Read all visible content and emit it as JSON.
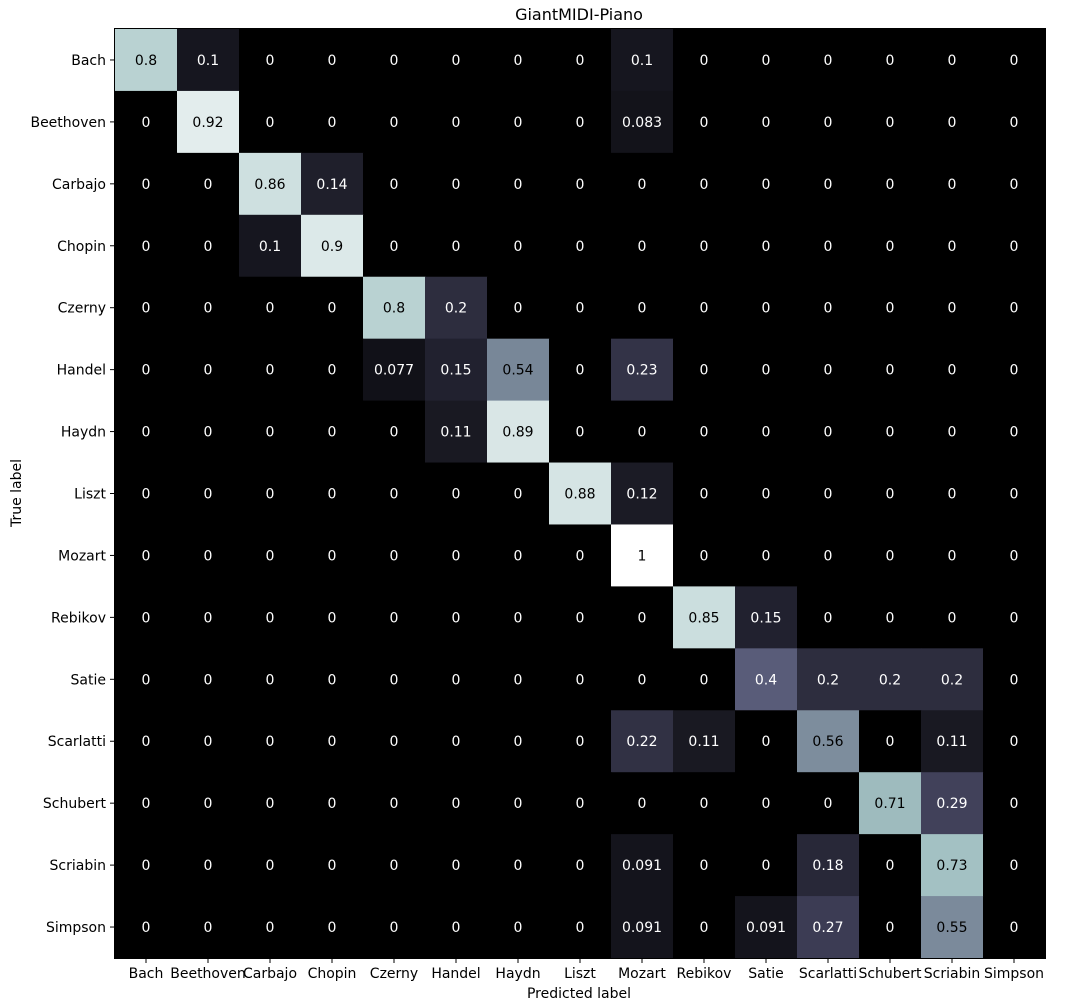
{
  "chart_data": {
    "type": "heatmap",
    "title": "GiantMIDI-Piano",
    "xlabel": "Predicted label",
    "ylabel": "True label",
    "x_categories": [
      "Bach",
      "Beethoven",
      "Carbajo",
      "Chopin",
      "Czerny",
      "Handel",
      "Haydn",
      "Liszt",
      "Mozart",
      "Rebikov",
      "Satie",
      "Scarlatti",
      "Schubert",
      "Scriabin",
      "Simpson"
    ],
    "y_categories": [
      "Bach",
      "Beethoven",
      "Carbajo",
      "Chopin",
      "Czerny",
      "Handel",
      "Haydn",
      "Liszt",
      "Mozart",
      "Rebikov",
      "Satie",
      "Scarlatti",
      "Schubert",
      "Scriabin",
      "Simpson"
    ],
    "value_range": [
      0,
      1
    ],
    "colormap": "bone",
    "cell_labels": [
      [
        "0.8",
        "0.1",
        "0",
        "0",
        "0",
        "0",
        "0",
        "0",
        "0.1",
        "0",
        "0",
        "0",
        "0",
        "0",
        "0"
      ],
      [
        "0",
        "0.92",
        "0",
        "0",
        "0",
        "0",
        "0",
        "0",
        "0.083",
        "0",
        "0",
        "0",
        "0",
        "0",
        "0"
      ],
      [
        "0",
        "0",
        "0.86",
        "0.14",
        "0",
        "0",
        "0",
        "0",
        "0",
        "0",
        "0",
        "0",
        "0",
        "0",
        "0"
      ],
      [
        "0",
        "0",
        "0.1",
        "0.9",
        "0",
        "0",
        "0",
        "0",
        "0",
        "0",
        "0",
        "0",
        "0",
        "0",
        "0"
      ],
      [
        "0",
        "0",
        "0",
        "0",
        "0.8",
        "0.2",
        "0",
        "0",
        "0",
        "0",
        "0",
        "0",
        "0",
        "0",
        "0"
      ],
      [
        "0",
        "0",
        "0",
        "0",
        "0.077",
        "0.15",
        "0.54",
        "0",
        "0.23",
        "0",
        "0",
        "0",
        "0",
        "0",
        "0"
      ],
      [
        "0",
        "0",
        "0",
        "0",
        "0",
        "0.11",
        "0.89",
        "0",
        "0",
        "0",
        "0",
        "0",
        "0",
        "0",
        "0"
      ],
      [
        "0",
        "0",
        "0",
        "0",
        "0",
        "0",
        "0",
        "0.88",
        "0.12",
        "0",
        "0",
        "0",
        "0",
        "0",
        "0"
      ],
      [
        "0",
        "0",
        "0",
        "0",
        "0",
        "0",
        "0",
        "0",
        "1",
        "0",
        "0",
        "0",
        "0",
        "0",
        "0"
      ],
      [
        "0",
        "0",
        "0",
        "0",
        "0",
        "0",
        "0",
        "0",
        "0",
        "0.85",
        "0.15",
        "0",
        "0",
        "0",
        "0"
      ],
      [
        "0",
        "0",
        "0",
        "0",
        "0",
        "0",
        "0",
        "0",
        "0",
        "0",
        "0.4",
        "0.2",
        "0.2",
        "0.2",
        "0"
      ],
      [
        "0",
        "0",
        "0",
        "0",
        "0",
        "0",
        "0",
        "0",
        "0.22",
        "0.11",
        "0",
        "0.56",
        "0",
        "0.11",
        "0"
      ],
      [
        "0",
        "0",
        "0",
        "0",
        "0",
        "0",
        "0",
        "0",
        "0",
        "0",
        "0",
        "0",
        "0.71",
        "0.29",
        "0"
      ],
      [
        "0",
        "0",
        "0",
        "0",
        "0",
        "0",
        "0",
        "0",
        "0.091",
        "0",
        "0",
        "0.18",
        "0",
        "0.73",
        "0"
      ],
      [
        "0",
        "0",
        "0",
        "0",
        "0",
        "0",
        "0",
        "0",
        "0.091",
        "0",
        "0.091",
        "0.27",
        "0",
        "0.55",
        "0"
      ]
    ]
  }
}
